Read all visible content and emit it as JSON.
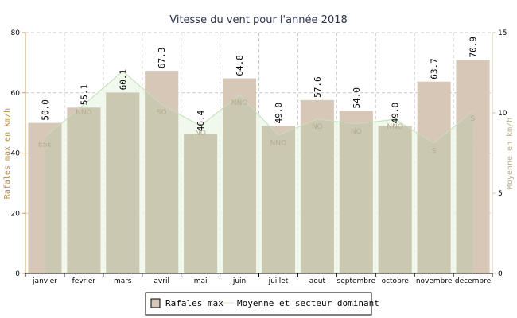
{
  "chart_data": {
    "type": "bar",
    "title": "Vitesse du vent pour l'année 2018",
    "categories": [
      "janvier",
      "fevrier",
      "mars",
      "avril",
      "mai",
      "juin",
      "juillet",
      "aout",
      "septembre",
      "octobre",
      "novembre",
      "decembre"
    ],
    "series": [
      {
        "name": "Rafales max",
        "type": "bar",
        "axis": "left",
        "color": "#d7c7b6",
        "values": [
          50.0,
          55.1,
          60.1,
          67.3,
          46.4,
          64.8,
          49.0,
          57.6,
          54.0,
          49.0,
          63.7,
          70.9
        ],
        "value_labels": [
          "50.0",
          "55.1",
          "60.1",
          "67.3",
          "46.4",
          "64.8",
          "49.0",
          "57.6",
          "54.0",
          "49.0",
          "63.7",
          "70.9"
        ]
      },
      {
        "name": "Moyenne et secteur dominant",
        "type": "area",
        "axis": "right",
        "color": "#eef7ea",
        "line_color": "#c9e6c0",
        "values": [
          8.5,
          10.5,
          12.6,
          10.5,
          9.2,
          11.1,
          8.6,
          9.6,
          9.3,
          9.6,
          8.1,
          10.1
        ],
        "direction_labels": [
          "ESE",
          "NNO",
          "",
          "SO",
          "NO",
          "NNO",
          "NNO",
          "NO",
          "NO",
          "NNO",
          "S",
          "S"
        ]
      }
    ],
    "ylabel": "Rafales max en km/h",
    "ylabel_right": "Moyenne en km/h",
    "ylim": [
      0,
      80
    ],
    "yticks": [
      0,
      20,
      40,
      60,
      80
    ],
    "ylim_right": [
      0,
      15
    ],
    "yticks_right": [
      0,
      5,
      10,
      15
    ],
    "grid": true,
    "legend_placement": "bottom-center"
  },
  "colors": {
    "bar_fill": "#d7c7b6",
    "overlap_fill": "#cbc8b2",
    "area_fill": "#eef7ea",
    "area_line": "#c9e6c0",
    "left_axis": "#c9a25c",
    "right_axis": "#cfcaa9",
    "grid": "#c8c8c8"
  }
}
